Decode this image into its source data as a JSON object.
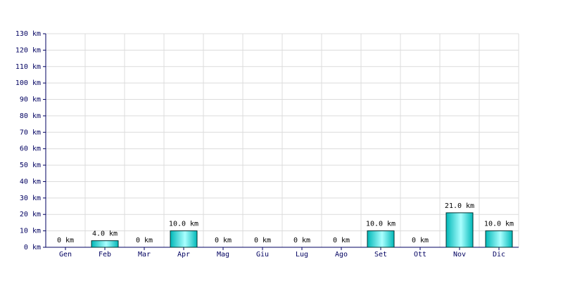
{
  "chart_data": {
    "type": "bar",
    "categories": [
      "Gen",
      "Feb",
      "Mar",
      "Apr",
      "Mag",
      "Giu",
      "Lug",
      "Ago",
      "Set",
      "Ott",
      "Nov",
      "Dic"
    ],
    "values": [
      0,
      4,
      0,
      10,
      0,
      0,
      0,
      0,
      10,
      0,
      21,
      10
    ],
    "value_labels": [
      "0 km",
      "4.0 km",
      "0 km",
      "10.0 km",
      "0 km",
      "0 km",
      "0 km",
      "0 km",
      "10.0 km",
      "0 km",
      "21.0 km",
      "10.0 km"
    ],
    "color": "#00b8b8",
    "ylim": [
      0,
      130
    ],
    "yticks": [
      {
        "value": 0,
        "label": "0 km"
      },
      {
        "value": 10,
        "label": "10 km"
      },
      {
        "value": 20,
        "label": "20 km"
      },
      {
        "value": 30,
        "label": "30 km"
      },
      {
        "value": 40,
        "label": "40 km"
      },
      {
        "value": 50,
        "label": "50 km"
      },
      {
        "value": 60,
        "label": "60 km"
      },
      {
        "value": 70,
        "label": "70 km"
      },
      {
        "value": 80,
        "label": "80 km"
      },
      {
        "value": 90,
        "label": "90 km"
      },
      {
        "value": 100,
        "label": "100 km"
      },
      {
        "value": 110,
        "label": "110 km"
      },
      {
        "value": 120,
        "label": "120 km"
      },
      {
        "value": 130,
        "label": "130 km"
      }
    ],
    "grid": true
  }
}
